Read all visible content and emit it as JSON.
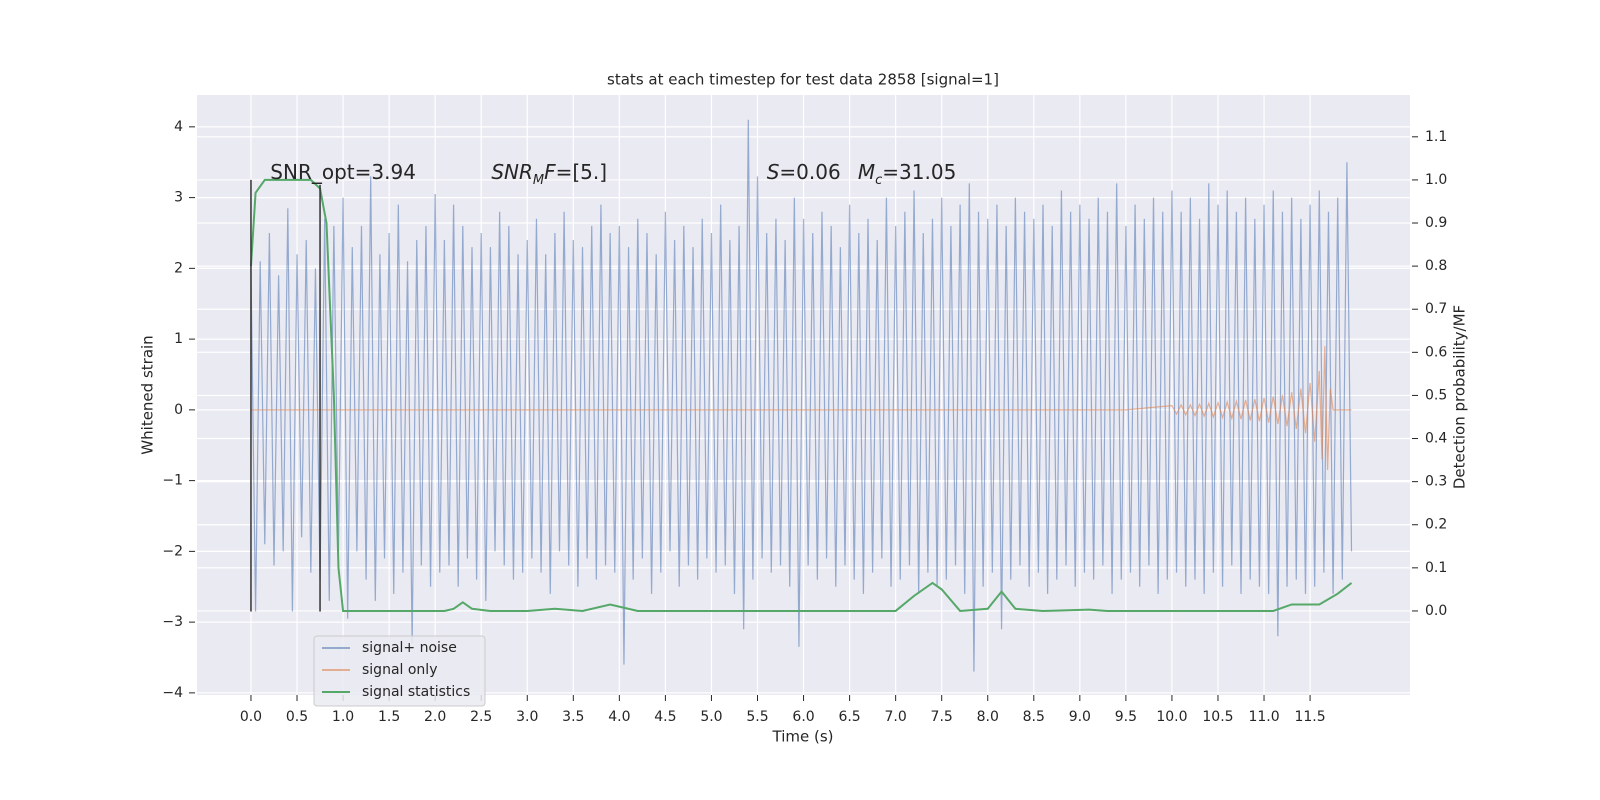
{
  "chart_data": {
    "type": "line",
    "title": "stats at each timestep for test data 2858 [signal=1]",
    "xlabel": "Time (s)",
    "ylabel": "Whitened strain",
    "y2label": "Detection probability/MF",
    "xlim": [
      -0.586,
      12.585
    ],
    "ylim": [
      -4.03,
      4.45
    ],
    "y2lim": [
      -0.195,
      1.197
    ],
    "xticks": [
      {
        "value": 0,
        "label": "0.0"
      },
      {
        "value": 0.5,
        "label": "0.5"
      },
      {
        "value": 1,
        "label": "1.0"
      },
      {
        "value": 1.5,
        "label": "1.5"
      },
      {
        "value": 2,
        "label": "2.0"
      },
      {
        "value": 2.5,
        "label": "2.5"
      },
      {
        "value": 3,
        "label": "3.0"
      },
      {
        "value": 3.5,
        "label": "3.5"
      },
      {
        "value": 4,
        "label": "4.0"
      },
      {
        "value": 4.5,
        "label": "4.5"
      },
      {
        "value": 5,
        "label": "5.0"
      },
      {
        "value": 5.5,
        "label": "5.5"
      },
      {
        "value": 6,
        "label": "6.0"
      },
      {
        "value": 6.5,
        "label": "6.5"
      },
      {
        "value": 7,
        "label": "7.0"
      },
      {
        "value": 7.5,
        "label": "7.5"
      },
      {
        "value": 8,
        "label": "8.0"
      },
      {
        "value": 8.5,
        "label": "8.5"
      },
      {
        "value": 9,
        "label": "9.0"
      },
      {
        "value": 9.5,
        "label": "9.5"
      },
      {
        "value": 10,
        "label": "10.0"
      },
      {
        "value": 10.5,
        "label": "10.5"
      },
      {
        "value": 11,
        "label": "11.0"
      },
      {
        "value": 11.5,
        "label": "11.5"
      }
    ],
    "yticks": [
      {
        "value": -4,
        "label": "−4"
      },
      {
        "value": -3,
        "label": "−3"
      },
      {
        "value": -2,
        "label": "−2"
      },
      {
        "value": -1,
        "label": "−1"
      },
      0,
      1,
      2,
      3,
      4
    ],
    "y2ticks": [
      {
        "value": 0,
        "label": "0.0"
      },
      {
        "value": 0.1,
        "label": "0.1"
      },
      {
        "value": 0.2,
        "label": "0.2"
      },
      {
        "value": 0.3,
        "label": "0.3"
      },
      {
        "value": 0.4,
        "label": "0.4"
      },
      {
        "value": 0.5,
        "label": "0.5"
      },
      {
        "value": 0.6,
        "label": "0.6"
      },
      {
        "value": 0.7,
        "label": "0.7"
      },
      {
        "value": 0.8,
        "label": "0.8"
      },
      {
        "value": 0.9,
        "label": "0.9"
      },
      {
        "value": 1,
        "label": "1.0"
      },
      {
        "value": 1.1,
        "label": "1.1"
      }
    ],
    "grid": true,
    "legend": "lower left",
    "series": [
      {
        "name": "signal+ noise",
        "color": "#4c72b0",
        "alpha": 0.55,
        "x": [
          0,
          0.05,
          0.1,
          0.15,
          0.2,
          0.25,
          0.3,
          0.35,
          0.4,
          0.45,
          0.5,
          0.55,
          0.6,
          0.65,
          0.7,
          0.75,
          0.8,
          0.85,
          0.9,
          0.95,
          1,
          1.05,
          1.1,
          1.15,
          1.2,
          1.25,
          1.3,
          1.35,
          1.4,
          1.45,
          1.5,
          1.55,
          1.6,
          1.65,
          1.7,
          1.75,
          1.8,
          1.85,
          1.9,
          1.95,
          2,
          2.05,
          2.1,
          2.15,
          2.2,
          2.25,
          2.3,
          2.35,
          2.4,
          2.45,
          2.5,
          2.55,
          2.6,
          2.65,
          2.7,
          2.75,
          2.8,
          2.85,
          2.9,
          2.95,
          3,
          3.05,
          3.1,
          3.15,
          3.2,
          3.25,
          3.3,
          3.35,
          3.4,
          3.45,
          3.5,
          3.55,
          3.6,
          3.65,
          3.7,
          3.75,
          3.8,
          3.85,
          3.9,
          3.95,
          4,
          4.05,
          4.1,
          4.15,
          4.2,
          4.25,
          4.3,
          4.35,
          4.4,
          4.45,
          4.5,
          4.55,
          4.6,
          4.65,
          4.7,
          4.75,
          4.8,
          4.85,
          4.9,
          4.95,
          5,
          5.05,
          5.1,
          5.15,
          5.2,
          5.25,
          5.3,
          5.35,
          5.4,
          5.45,
          5.5,
          5.55,
          5.6,
          5.65,
          5.7,
          5.75,
          5.8,
          5.85,
          5.9,
          5.95,
          6,
          6.05,
          6.1,
          6.15,
          6.2,
          6.25,
          6.3,
          6.35,
          6.4,
          6.45,
          6.5,
          6.55,
          6.6,
          6.65,
          6.7,
          6.75,
          6.8,
          6.85,
          6.9,
          6.95,
          7,
          7.05,
          7.1,
          7.15,
          7.2,
          7.25,
          7.3,
          7.35,
          7.4,
          7.45,
          7.5,
          7.55,
          7.6,
          7.65,
          7.7,
          7.75,
          7.8,
          7.85,
          7.9,
          7.95,
          8,
          8.05,
          8.1,
          8.15,
          8.2,
          8.25,
          8.3,
          8.35,
          8.4,
          8.45,
          8.5,
          8.55,
          8.6,
          8.65,
          8.7,
          8.75,
          8.8,
          8.85,
          8.9,
          8.95,
          9,
          9.05,
          9.1,
          9.15,
          9.2,
          9.25,
          9.3,
          9.35,
          9.4,
          9.45,
          9.5,
          9.55,
          9.6,
          9.65,
          9.7,
          9.75,
          9.8,
          9.85,
          9.9,
          9.95,
          10,
          10.05,
          10.1,
          10.15,
          10.2,
          10.25,
          10.3,
          10.35,
          10.4,
          10.45,
          10.5,
          10.55,
          10.6,
          10.65,
          10.7,
          10.75,
          10.8,
          10.85,
          10.9,
          10.95,
          11,
          11.05,
          11.1,
          11.15,
          11.2,
          11.25,
          11.3,
          11.35,
          11.4,
          11.45,
          11.5,
          11.55,
          11.6,
          11.65,
          11.7,
          11.75,
          11.8,
          11.85,
          11.9,
          11.95
        ],
        "values": [
          2.0,
          -2.85,
          2.1,
          -1.9,
          2.5,
          -2.2,
          1.9,
          -2.0,
          2.85,
          -2.85,
          2.2,
          -1.8,
          2.4,
          -2.3,
          2.0,
          -2.4,
          2.7,
          -2.7,
          2.6,
          -2.0,
          3.0,
          -2.95,
          2.3,
          -2.0,
          2.6,
          -2.4,
          3.3,
          -2.7,
          2.2,
          -2.1,
          2.5,
          -2.6,
          2.9,
          -2.3,
          2.1,
          -3.3,
          2.4,
          -2.2,
          2.6,
          -2.5,
          3.05,
          -2.3,
          2.4,
          -2.2,
          2.9,
          -2.5,
          2.6,
          -2.1,
          2.3,
          -2.4,
          2.5,
          -2.7,
          2.3,
          -2.0,
          2.8,
          -2.2,
          2.6,
          -2.4,
          2.2,
          -2.3,
          2.4,
          -2.1,
          2.7,
          -2.3,
          2.2,
          -2.6,
          2.5,
          -2.0,
          2.8,
          -2.2,
          2.4,
          -2.5,
          2.3,
          -2.1,
          2.6,
          -2.4,
          2.9,
          -2.2,
          2.5,
          -2.3,
          2.6,
          -3.6,
          2.3,
          -2.4,
          2.7,
          -2.1,
          2.5,
          -2.6,
          2.2,
          -2.3,
          2.8,
          -2.0,
          2.4,
          -2.5,
          2.6,
          -2.2,
          2.3,
          -2.4,
          2.7,
          -2.1,
          2.5,
          -2.3,
          2.9,
          -2.2,
          2.4,
          -2.6,
          2.6,
          -3.1,
          4.1,
          -2.4,
          3.3,
          -2.1,
          2.5,
          -2.3,
          2.7,
          -2.2,
          2.4,
          -2.5,
          3.0,
          -3.35,
          2.7,
          -2.2,
          2.5,
          -2.4,
          2.8,
          -2.1,
          2.6,
          -2.5,
          2.3,
          -2.2,
          2.9,
          -2.4,
          2.5,
          -2.6,
          2.7,
          -2.3,
          2.4,
          -2.1,
          3.0,
          -2.5,
          2.6,
          -2.4,
          2.8,
          -2.2,
          3.1,
          -2.6,
          2.5,
          -2.3,
          2.7,
          -2.5,
          3.0,
          -2.4,
          2.6,
          -2.2,
          2.9,
          -2.6,
          3.2,
          -3.7,
          2.8,
          -2.5,
          2.7,
          -2.3,
          2.9,
          -3.1,
          2.6,
          -2.4,
          3.0,
          -2.2,
          2.8,
          -2.5,
          2.7,
          -2.3,
          2.9,
          -2.6,
          2.6,
          -2.4,
          3.1,
          -2.2,
          2.8,
          -2.5,
          2.9,
          -2.3,
          2.7,
          -2.4,
          3.0,
          -2.2,
          2.8,
          -2.6,
          3.2,
          -2.4,
          2.6,
          -2.3,
          2.9,
          -2.5,
          2.7,
          -2.2,
          3.0,
          -2.6,
          2.8,
          -2.4,
          3.1,
          -2.3,
          2.8,
          -2.5,
          3.0,
          -2.4,
          2.7,
          -2.6,
          3.2,
          -2.3,
          2.9,
          -2.5,
          3.1,
          -2.2,
          2.8,
          -2.6,
          3.0,
          -2.4,
          2.7,
          -2.5,
          2.9,
          -2.6,
          3.1,
          -3.2,
          2.8,
          -2.5,
          3.0,
          -2.4,
          2.7,
          -2.6,
          2.9,
          -2.5,
          3.1,
          -2.3,
          2.8,
          -2.6,
          3.0,
          -2.4,
          3.5,
          -2.0
        ]
      },
      {
        "name": "signal only",
        "color": "#dd8452",
        "alpha": 0.6,
        "x": [
          0,
          9.5,
          10.0,
          10.05,
          10.1,
          10.15,
          10.2,
          10.25,
          10.3,
          10.35,
          10.4,
          10.45,
          10.5,
          10.55,
          10.6,
          10.65,
          10.7,
          10.75,
          10.8,
          10.85,
          10.9,
          10.95,
          11.0,
          11.05,
          11.1,
          11.15,
          11.2,
          11.25,
          11.3,
          11.35,
          11.4,
          11.45,
          11.5,
          11.55,
          11.6,
          11.63,
          11.66,
          11.69,
          11.72,
          11.75,
          11.95
        ],
        "values": [
          0,
          0,
          0.06,
          -0.06,
          0.07,
          -0.07,
          0.07,
          -0.08,
          0.08,
          -0.09,
          0.09,
          -0.1,
          0.1,
          -0.11,
          0.11,
          -0.12,
          0.12,
          -0.13,
          0.14,
          -0.15,
          0.15,
          -0.16,
          0.17,
          -0.18,
          0.19,
          -0.2,
          0.21,
          -0.23,
          0.25,
          -0.27,
          0.3,
          -0.33,
          0.38,
          -0.45,
          0.55,
          -0.7,
          0.9,
          -0.85,
          0.3,
          0,
          0
        ]
      },
      {
        "name": "signal statistics",
        "color": "#55a868",
        "axis": "y2",
        "alpha": 1,
        "x": [
          0,
          0.05,
          0.15,
          0.3,
          0.5,
          0.65,
          0.75,
          0.82,
          0.9,
          0.95,
          1.0,
          1.5,
          2.1,
          2.2,
          2.3,
          2.4,
          2.6,
          3.0,
          3.3,
          3.6,
          3.9,
          4.2,
          5.0,
          7.0,
          7.2,
          7.4,
          7.5,
          7.7,
          8.0,
          8.15,
          8.3,
          8.6,
          9.1,
          9.3,
          11.1,
          11.3,
          11.6,
          11.8,
          11.95
        ],
        "values": [
          0.8,
          0.97,
          1.0,
          1.0,
          1.0,
          1.0,
          0.98,
          0.9,
          0.5,
          0.1,
          0.0,
          0.0,
          0.0,
          0.005,
          0.02,
          0.005,
          0.0,
          0.0,
          0.005,
          0.0,
          0.015,
          0.0,
          0.0,
          0.0,
          0.035,
          0.065,
          0.05,
          0.0,
          0.005,
          0.045,
          0.005,
          0.0,
          0.003,
          0.0,
          0.0,
          0.015,
          0.015,
          0.04,
          0.065
        ]
      }
    ],
    "vlines": [
      {
        "x": 0,
        "ymin": -2.85,
        "ymax": 3.25
      },
      {
        "x": 0.75,
        "ymin": -2.85,
        "ymax": 3.18
      }
    ],
    "annotations": [
      {
        "x": 0.21,
        "y": 3.35,
        "parts": [
          {
            "text": "SNR_opt=3.94"
          }
        ]
      },
      {
        "x": 2.61,
        "y": 3.35,
        "parts": [
          {
            "text": "SNR",
            "italic": true
          },
          {
            "text": "M",
            "italic": true,
            "sub": true
          },
          {
            "text": "F",
            "italic": true
          },
          {
            "text": "=[5.]"
          }
        ]
      },
      {
        "x": 5.6,
        "y": 3.35,
        "parts": [
          {
            "text": "S",
            "italic": true
          },
          {
            "text": "=0.06"
          }
        ]
      },
      {
        "x": 6.59,
        "y": 3.35,
        "parts": [
          {
            "text": "M",
            "italic": true
          },
          {
            "text": "c",
            "italic": true,
            "sub": true
          },
          {
            "text": "=31.05"
          }
        ]
      }
    ]
  }
}
